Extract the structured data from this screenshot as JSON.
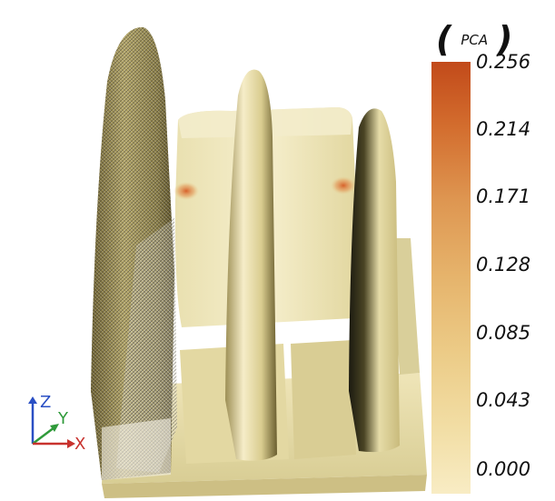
{
  "legend": {
    "open_paren": "(",
    "title": "PCA",
    "close_paren": ")",
    "ticks": [
      "0.256",
      "0.214",
      "0.171",
      "0.128",
      "0.085",
      "0.043",
      "0.000"
    ],
    "colors": {
      "max": "#c24a1a",
      "mid": "#e6b46c",
      "min": "#f8ecc4"
    }
  },
  "axes": {
    "z_label": "Z",
    "y_label": "Y",
    "x_label": "X",
    "colors": {
      "z": "#2a4fc4",
      "y": "#2f9a3a",
      "x": "#c8322e"
    }
  }
}
